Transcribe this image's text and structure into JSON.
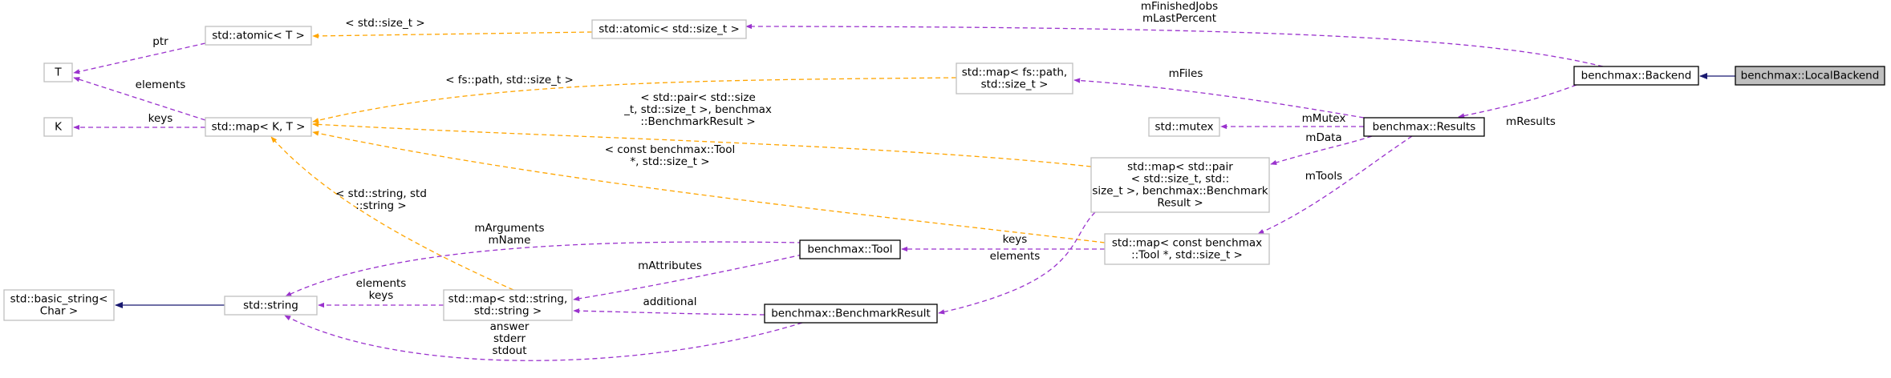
{
  "colors": {
    "usage": "#9a32cd",
    "template": "#ffa500",
    "inherit": "#191970",
    "node_border_strong": "#000000",
    "node_border_light": "#bfbfbf",
    "node_fill_selected": "#bfbfbf"
  },
  "diagram": {
    "nodes": [
      {
        "id": "local_backend",
        "lines": [
          "benchmax::LocalBackend"
        ],
        "style": "selected"
      },
      {
        "id": "backend",
        "lines": [
          "benchmax::Backend"
        ],
        "style": "solid"
      },
      {
        "id": "atomic_size_t",
        "lines": [
          "std::atomic< std::size_t >"
        ],
        "style": "light"
      },
      {
        "id": "atomic_t",
        "lines": [
          "std::atomic< T >"
        ],
        "style": "light"
      },
      {
        "id": "t",
        "lines": [
          "T"
        ],
        "style": "light"
      },
      {
        "id": "k",
        "lines": [
          "K"
        ],
        "style": "light"
      },
      {
        "id": "map_k_t",
        "lines": [
          "std::map< K, T >"
        ],
        "style": "light"
      },
      {
        "id": "map_fspath",
        "lines": [
          "std::map< fs::path,",
          "std::size_t >"
        ],
        "style": "light"
      },
      {
        "id": "mutex",
        "lines": [
          "std::mutex"
        ],
        "style": "light"
      },
      {
        "id": "results",
        "lines": [
          "benchmax::Results"
        ],
        "style": "solid"
      },
      {
        "id": "map_pair",
        "lines": [
          "std::map< std::pair",
          "< std::size_t, std::",
          "size_t >, benchmax::Benchmark",
          "Result >"
        ],
        "style": "light"
      },
      {
        "id": "map_tool",
        "lines": [
          "std::map< const benchmax",
          "::Tool *, std::size_t >"
        ],
        "style": "light"
      },
      {
        "id": "tool",
        "lines": [
          "benchmax::Tool"
        ],
        "style": "solid"
      },
      {
        "id": "basic_string",
        "lines": [
          "std::basic_string<",
          "Char >"
        ],
        "style": "light"
      },
      {
        "id": "string",
        "lines": [
          "std::string"
        ],
        "style": "light"
      },
      {
        "id": "map_string",
        "lines": [
          "std::map< std::string,",
          "std::string >"
        ],
        "style": "light"
      },
      {
        "id": "benchmark_result",
        "lines": [
          "benchmax::BenchmarkResult"
        ],
        "style": "solid"
      }
    ],
    "edges": [
      {
        "kind": "inherit",
        "labels": []
      },
      {
        "kind": "usage",
        "labels": [
          "mFinishedJobs",
          "mLastPercent"
        ]
      },
      {
        "kind": "template",
        "labels": [
          "< std::size_t >"
        ]
      },
      {
        "kind": "usage",
        "labels": [
          "ptr"
        ]
      },
      {
        "kind": "usage",
        "labels": [
          "elements"
        ]
      },
      {
        "kind": "usage",
        "labels": [
          "keys"
        ]
      },
      {
        "kind": "template",
        "labels": [
          "< fs::path, std::size_t >"
        ]
      },
      {
        "kind": "template",
        "labels": [
          "< std::pair< std::size",
          "_t, std::size_t >, benchmax",
          "::BenchmarkResult >"
        ]
      },
      {
        "kind": "template",
        "labels": [
          "< const benchmax::Tool",
          "*, std::size_t >"
        ]
      },
      {
        "kind": "template",
        "labels": [
          "< std::string, std",
          "::string >"
        ]
      },
      {
        "kind": "usage",
        "labels": [
          "mResults"
        ]
      },
      {
        "kind": "usage",
        "labels": [
          "mFiles"
        ]
      },
      {
        "kind": "usage",
        "labels": [
          "mMutex"
        ]
      },
      {
        "kind": "usage",
        "labels": [
          "mData"
        ]
      },
      {
        "kind": "usage",
        "labels": [
          "mTools"
        ]
      },
      {
        "kind": "usage",
        "labels": [
          "keys"
        ]
      },
      {
        "kind": "usage",
        "labels": [
          "elements"
        ]
      },
      {
        "kind": "usage",
        "labels": [
          "mArguments",
          "mName"
        ]
      },
      {
        "kind": "usage",
        "labels": [
          "mAttributes"
        ]
      },
      {
        "kind": "usage",
        "labels": [
          "additional"
        ]
      },
      {
        "kind": "usage",
        "labels": [
          "elements",
          "keys"
        ]
      },
      {
        "kind": "inherit",
        "labels": []
      },
      {
        "kind": "usage",
        "labels": [
          "answer",
          "stderr",
          "stdout"
        ]
      }
    ]
  }
}
